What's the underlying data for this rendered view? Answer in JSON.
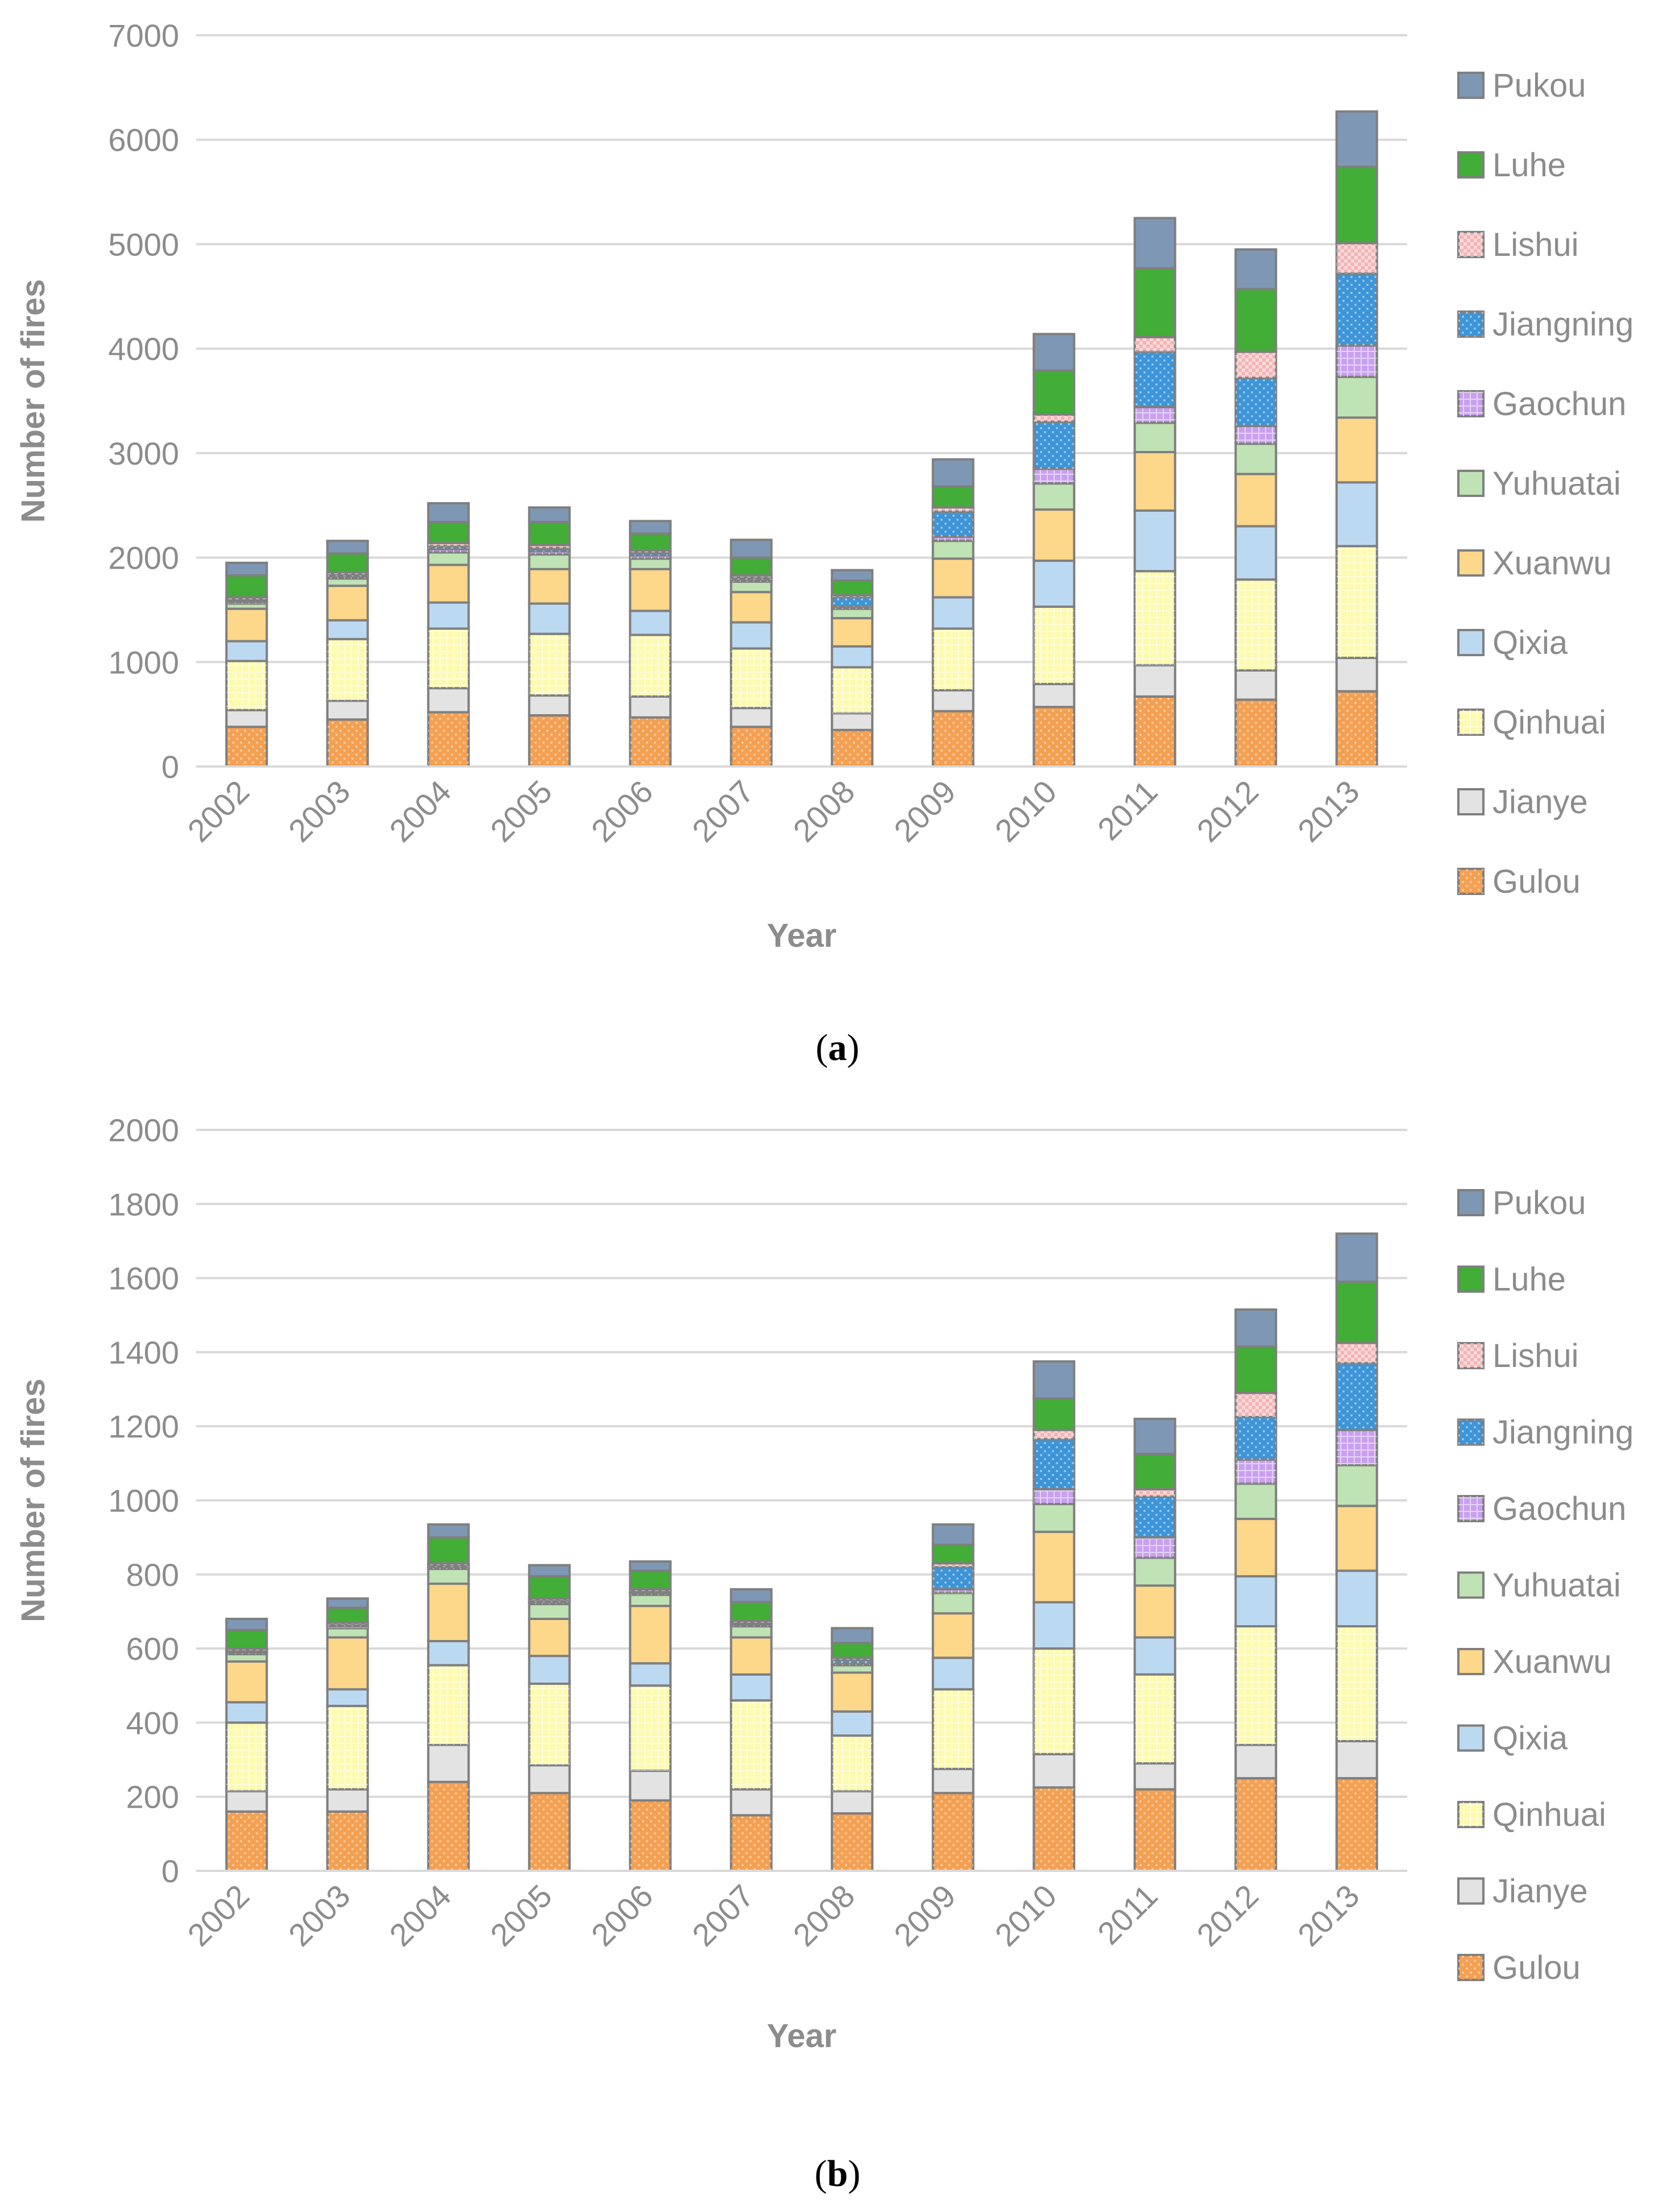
{
  "colors": {
    "Gulou": "#f4a052",
    "Jianye": "#e3e3e3",
    "Qinhuai": "#fdfab0",
    "Qixia": "#bcd9f2",
    "Xuanwu": "#fdd78a",
    "Yuhuatai": "#bfe3b4",
    "Gaochun": "#c9a0f0",
    "Jiangning": "#3d95d8",
    "Lishui": "#f4b3b3",
    "Luhe": "#42ad37",
    "Pukou": "#7e97b4",
    "axis_text": "#8c8c8c",
    "gridline": "#d9d9d9",
    "bar_edge": "#7f7f7f"
  },
  "chart_data": [
    {
      "type": "bar",
      "stacked": true,
      "caption": "a",
      "categories": [
        "2002",
        "2003",
        "2004",
        "2005",
        "2006",
        "2007",
        "2008",
        "2009",
        "2010",
        "2011",
        "2012",
        "2013"
      ],
      "xlabel": "Year",
      "ylabel": "Number of fires",
      "ylim": [
        0,
        7000
      ],
      "ytick_step": 1000,
      "yticks": [
        "0",
        "1000",
        "2000",
        "3000",
        "4000",
        "5000",
        "6000",
        "7000"
      ],
      "gridlines": true,
      "legend_position": "right",
      "legend": [
        "Pukou",
        "Luhe",
        "Lishui",
        "Jiangning",
        "Gaochun",
        "Yuhuatai",
        "Xuanwu",
        "Qixia",
        "Qinhuai",
        "Jianye",
        "Gulou"
      ],
      "series": [
        {
          "name": "Gulou",
          "values": [
            380,
            450,
            520,
            490,
            470,
            380,
            350,
            530,
            570,
            670,
            640,
            720
          ]
        },
        {
          "name": "Jianye",
          "values": [
            160,
            180,
            230,
            190,
            200,
            180,
            160,
            200,
            220,
            300,
            280,
            320
          ]
        },
        {
          "name": "Qinhuai",
          "values": [
            470,
            590,
            570,
            590,
            590,
            570,
            440,
            590,
            740,
            900,
            870,
            1070
          ]
        },
        {
          "name": "Qixia",
          "values": [
            190,
            180,
            250,
            290,
            230,
            250,
            200,
            300,
            440,
            580,
            510,
            610
          ]
        },
        {
          "name": "Xuanwu",
          "values": [
            310,
            330,
            360,
            330,
            400,
            290,
            270,
            370,
            490,
            560,
            500,
            620
          ]
        },
        {
          "name": "Yuhuatai",
          "values": [
            50,
            70,
            120,
            140,
            100,
            100,
            90,
            170,
            250,
            280,
            290,
            390
          ]
        },
        {
          "name": "Gaochun",
          "values": [
            20,
            20,
            30,
            30,
            30,
            20,
            20,
            40,
            140,
            150,
            170,
            300
          ]
        },
        {
          "name": "Jiangning",
          "values": [
            20,
            20,
            30,
            30,
            30,
            20,
            90,
            240,
            450,
            530,
            460,
            690
          ]
        },
        {
          "name": "Lishui",
          "values": [
            20,
            20,
            30,
            30,
            20,
            20,
            20,
            40,
            70,
            140,
            250,
            290
          ]
        },
        {
          "name": "Luhe",
          "values": [
            210,
            180,
            200,
            220,
            160,
            170,
            140,
            200,
            420,
            660,
            600,
            730
          ]
        },
        {
          "name": "Pukou",
          "values": [
            120,
            120,
            180,
            140,
            120,
            170,
            100,
            260,
            350,
            480,
            380,
            530
          ]
        }
      ]
    },
    {
      "type": "bar",
      "stacked": true,
      "caption": "b",
      "categories": [
        "2002",
        "2003",
        "2004",
        "2005",
        "2006",
        "2007",
        "2008",
        "2009",
        "2010",
        "2011",
        "2012",
        "2013"
      ],
      "xlabel": "Year",
      "ylabel": "Number of fires",
      "ylim": [
        0,
        2000
      ],
      "ytick_step": 200,
      "yticks": [
        "0",
        "200",
        "400",
        "600",
        "800",
        "1000",
        "1200",
        "1400",
        "1600",
        "1800",
        "2000"
      ],
      "gridlines": true,
      "legend_position": "right",
      "legend": [
        "Pukou",
        "Luhe",
        "Lishui",
        "Jiangning",
        "Gaochun",
        "Yuhuatai",
        "Xuanwu",
        "Qixia",
        "Qinhuai",
        "Jianye",
        "Gulou"
      ],
      "series": [
        {
          "name": "Gulou",
          "values": [
            160,
            160,
            240,
            210,
            190,
            150,
            155,
            210,
            225,
            220,
            250,
            250
          ]
        },
        {
          "name": "Jianye",
          "values": [
            55,
            60,
            100,
            75,
            80,
            70,
            60,
            65,
            90,
            70,
            90,
            100
          ]
        },
        {
          "name": "Qinhuai",
          "values": [
            185,
            225,
            215,
            220,
            230,
            240,
            150,
            215,
            285,
            240,
            320,
            310
          ]
        },
        {
          "name": "Qixia",
          "values": [
            55,
            45,
            65,
            75,
            60,
            70,
            65,
            85,
            125,
            100,
            135,
            150
          ]
        },
        {
          "name": "Xuanwu",
          "values": [
            110,
            140,
            155,
            100,
            155,
            100,
            105,
            120,
            190,
            140,
            155,
            175
          ]
        },
        {
          "name": "Yuhuatai",
          "values": [
            20,
            25,
            40,
            40,
            30,
            30,
            20,
            55,
            75,
            75,
            95,
            110
          ]
        },
        {
          "name": "Gaochun",
          "values": [
            5,
            5,
            5,
            5,
            5,
            5,
            5,
            10,
            40,
            55,
            65,
            95
          ]
        },
        {
          "name": "Jiangning",
          "values": [
            5,
            5,
            5,
            5,
            5,
            5,
            10,
            60,
            135,
            110,
            115,
            180
          ]
        },
        {
          "name": "Lishui",
          "values": [
            5,
            5,
            5,
            5,
            5,
            5,
            5,
            10,
            25,
            20,
            65,
            55
          ]
        },
        {
          "name": "Luhe",
          "values": [
            50,
            40,
            70,
            60,
            50,
            50,
            40,
            50,
            85,
            95,
            125,
            165
          ]
        },
        {
          "name": "Pukou",
          "values": [
            30,
            25,
            35,
            30,
            25,
            35,
            40,
            55,
            100,
            95,
            100,
            130
          ]
        }
      ]
    }
  ]
}
